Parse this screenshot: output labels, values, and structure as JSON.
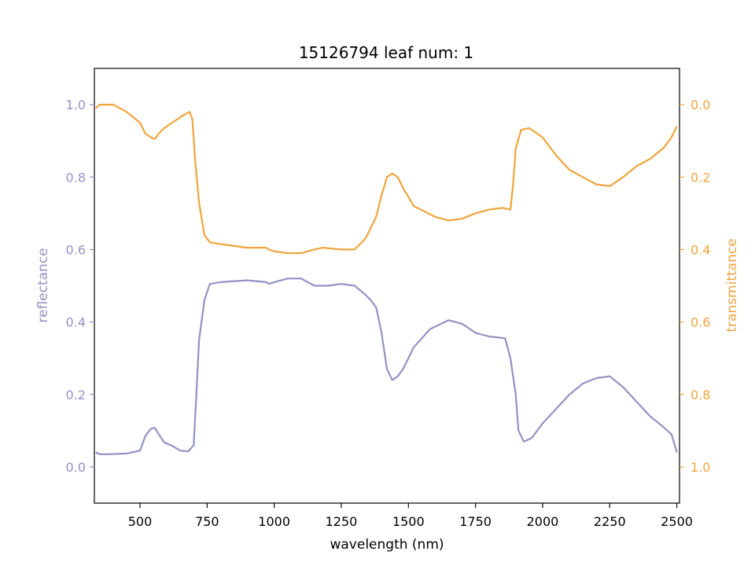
{
  "chart_data": {
    "type": "line",
    "title": "15126794 leaf num: 1",
    "xlabel": "wavelength (nm)",
    "ylabel_left": "reflectance",
    "ylabel_right": "transmittance",
    "xlim": [
      330,
      2510
    ],
    "ylim_left": [
      -0.1,
      1.1
    ],
    "ylim_right_inverted": [
      1.1,
      -0.1
    ],
    "x_ticks": [
      500,
      750,
      1000,
      1250,
      1500,
      1750,
      2000,
      2250,
      2500
    ],
    "x_tick_labels": [
      "500",
      "750",
      "1000",
      "1250",
      "1500",
      "1750",
      "2000",
      "2250",
      "2500"
    ],
    "y_left_ticks": [
      0.0,
      0.2,
      0.4,
      0.6,
      0.8,
      1.0
    ],
    "y_left_tick_labels": [
      "0.0",
      "0.2",
      "0.4",
      "0.6",
      "0.8",
      "1.0"
    ],
    "y_right_ticks": [
      0.0,
      0.2,
      0.4,
      0.6,
      0.8,
      1.0
    ],
    "y_right_tick_labels": [
      "0.0",
      "0.2",
      "0.4",
      "0.6",
      "0.8",
      "1.0"
    ],
    "grid": false,
    "legend": "none",
    "series": [
      {
        "name": "reflectance",
        "axis": "left",
        "color": "#9591c4",
        "x": [
          335,
          350,
          380,
          450,
          500,
          520,
          540,
          555,
          570,
          590,
          620,
          650,
          680,
          700,
          710,
          720,
          740,
          760,
          800,
          900,
          970,
          980,
          1000,
          1050,
          1100,
          1150,
          1200,
          1250,
          1300,
          1340,
          1360,
          1380,
          1400,
          1420,
          1440,
          1460,
          1480,
          1520,
          1580,
          1650,
          1700,
          1750,
          1800,
          1860,
          1880,
          1900,
          1910,
          1930,
          1960,
          2000,
          2050,
          2100,
          2150,
          2200,
          2250,
          2300,
          2350,
          2400,
          2450,
          2480,
          2500
        ],
        "y": [
          0.04,
          0.035,
          0.035,
          0.037,
          0.045,
          0.085,
          0.105,
          0.108,
          0.09,
          0.068,
          0.058,
          0.045,
          0.043,
          0.06,
          0.2,
          0.35,
          0.46,
          0.505,
          0.51,
          0.515,
          0.51,
          0.505,
          0.51,
          0.52,
          0.52,
          0.5,
          0.5,
          0.505,
          0.5,
          0.475,
          0.46,
          0.44,
          0.37,
          0.27,
          0.24,
          0.25,
          0.27,
          0.33,
          0.38,
          0.405,
          0.395,
          0.37,
          0.36,
          0.355,
          0.3,
          0.2,
          0.1,
          0.07,
          0.08,
          0.12,
          0.16,
          0.2,
          0.23,
          0.245,
          0.25,
          0.22,
          0.18,
          0.14,
          0.11,
          0.09,
          0.04
        ]
      },
      {
        "name": "transmittance",
        "axis": "right",
        "color": "#f0a43c",
        "x": [
          335,
          350,
          400,
          450,
          500,
          520,
          540,
          555,
          570,
          590,
          620,
          660,
          685,
          695,
          705,
          720,
          740,
          760,
          800,
          900,
          970,
          980,
          1000,
          1050,
          1100,
          1150,
          1180,
          1250,
          1300,
          1340,
          1380,
          1400,
          1420,
          1440,
          1460,
          1480,
          1520,
          1600,
          1650,
          1700,
          1750,
          1800,
          1850,
          1880,
          1890,
          1900,
          1920,
          1950,
          2000,
          2050,
          2100,
          2150,
          2200,
          2250,
          2300,
          2350,
          2400,
          2450,
          2480,
          2500
        ],
        "y": [
          0.01,
          0.0,
          0.0,
          0.02,
          0.05,
          0.08,
          0.09,
          0.095,
          0.08,
          0.065,
          0.05,
          0.03,
          0.02,
          0.04,
          0.15,
          0.27,
          0.36,
          0.38,
          0.385,
          0.395,
          0.395,
          0.4,
          0.405,
          0.41,
          0.41,
          0.4,
          0.395,
          0.4,
          0.4,
          0.37,
          0.31,
          0.25,
          0.2,
          0.19,
          0.2,
          0.23,
          0.28,
          0.31,
          0.32,
          0.315,
          0.3,
          0.29,
          0.285,
          0.29,
          0.22,
          0.12,
          0.07,
          0.065,
          0.09,
          0.14,
          0.18,
          0.2,
          0.22,
          0.225,
          0.2,
          0.17,
          0.15,
          0.12,
          0.09,
          0.06
        ]
      }
    ]
  }
}
